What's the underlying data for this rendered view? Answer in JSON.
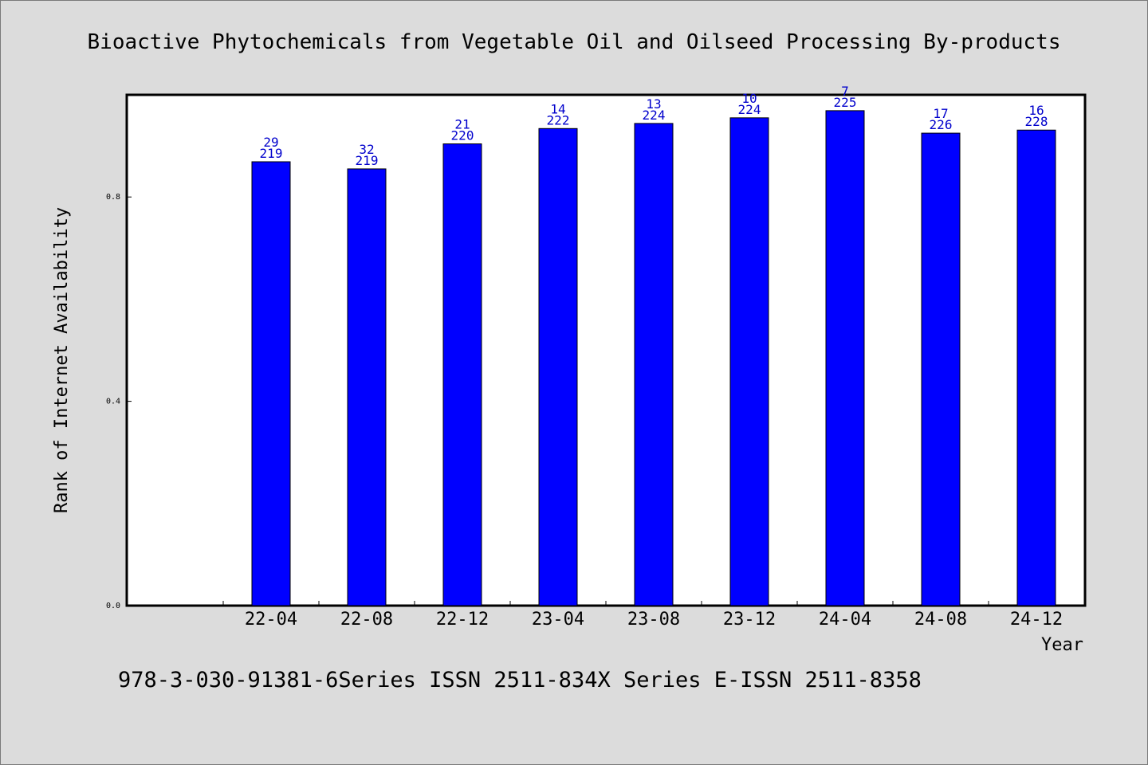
{
  "chart_data": {
    "type": "bar",
    "title": "Bioactive Phytochemicals from Vegetable Oil and Oilseed Processing By-products",
    "xlabel": "Year",
    "ylabel": "Rank of Internet Availability",
    "categories": [
      "22-04",
      "22-08",
      "22-12",
      "23-04",
      "23-08",
      "23-12",
      "24-04",
      "24-08",
      "24-12"
    ],
    "series": [
      {
        "values": [
          0.869,
          0.855,
          0.904,
          0.934,
          0.944,
          0.955,
          0.969,
          0.925,
          0.931
        ],
        "rank": [
          "29",
          "32",
          "21",
          "14",
          "13",
          "10",
          "7",
          "17",
          "16"
        ],
        "total": [
          "219",
          "219",
          "220",
          "222",
          "224",
          "224",
          "225",
          "226",
          "228"
        ],
        "color": "#0000ff"
      }
    ],
    "yticks": [
      "0.0",
      "0.4",
      "0.8"
    ],
    "ytick_values": [
      0.0,
      0.4,
      0.8
    ],
    "ylim": [
      0,
      1.0
    ],
    "grid": false,
    "legend": "none"
  },
  "footer": "978-3-030-91381-6Series ISSN 2511-834X Series E-ISSN 2511-8358"
}
